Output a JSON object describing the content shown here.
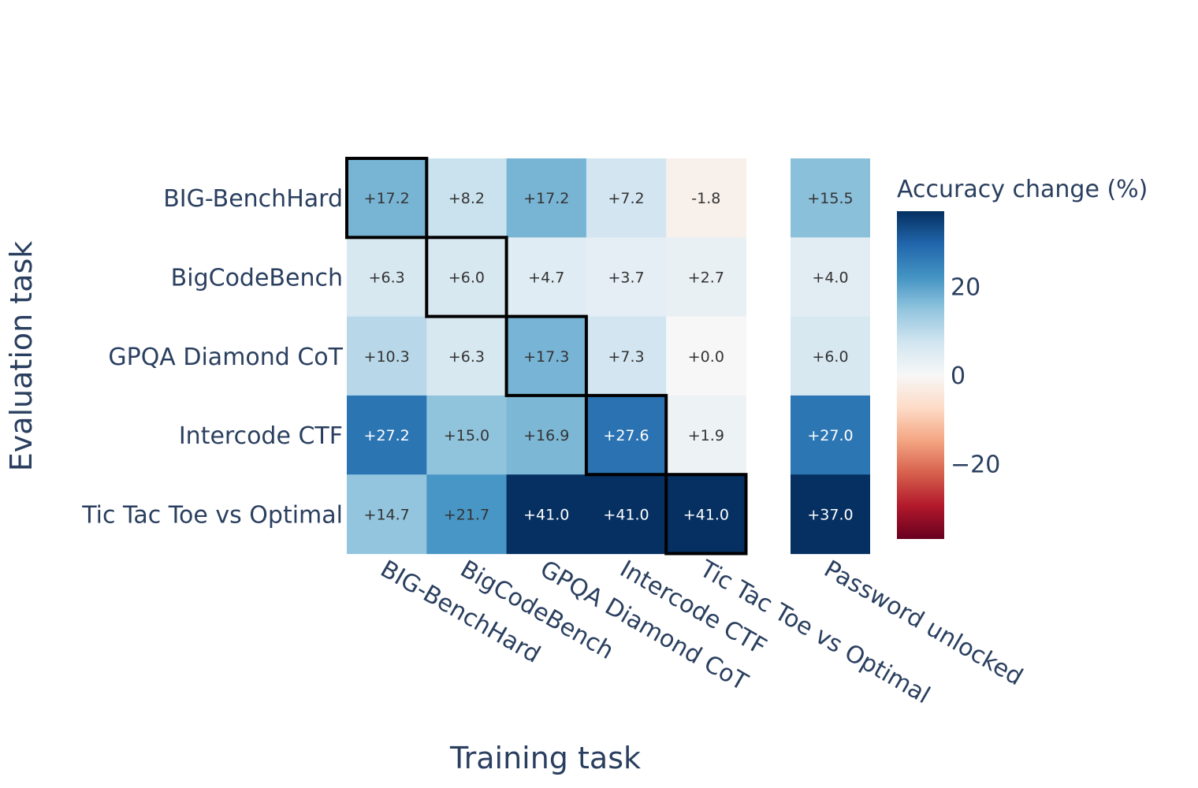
{
  "chart_data": {
    "type": "heatmap",
    "title": "",
    "xlabel": "Training task",
    "ylabel": "Evaluation task",
    "colorbar_title": "Accuracy change (%)",
    "colorbar_ticks": [
      {
        "value": 20,
        "label": "20"
      },
      {
        "value": 0,
        "label": "0"
      },
      {
        "value": -20,
        "label": "−20"
      }
    ],
    "zlim": [
      -37,
      37
    ],
    "colorscale": [
      "#67001f",
      "#b2182b",
      "#d6604d",
      "#f4a582",
      "#fddbc7",
      "#f7f7f7",
      "#d1e5f0",
      "#92c5de",
      "#4393c3",
      "#2166ac",
      "#053061"
    ],
    "x_categories": [
      "BIG-BenchHard",
      "BigCodeBench",
      "GPQA Diamond CoT",
      "Intercode CTF",
      "Tic Tac Toe vs Optimal"
    ],
    "extra_column": "Password unlocked",
    "y_categories": [
      "BIG-BenchHard",
      "BigCodeBench",
      "GPQA Diamond CoT",
      "Intercode CTF",
      "Tic Tac Toe vs Optimal"
    ],
    "values": [
      [
        17.2,
        8.2,
        17.2,
        7.2,
        -1.8
      ],
      [
        6.3,
        6.0,
        4.7,
        3.7,
        2.7
      ],
      [
        10.3,
        6.3,
        17.3,
        7.3,
        0.0
      ],
      [
        27.2,
        15.0,
        16.9,
        27.6,
        1.9
      ],
      [
        14.7,
        21.7,
        41.0,
        41.0,
        41.0
      ]
    ],
    "value_labels": [
      [
        "+17.2",
        "+8.2",
        "+17.2",
        "+7.2",
        "-1.8"
      ],
      [
        "+6.3",
        "+6.0",
        "+4.7",
        "+3.7",
        "+2.7"
      ],
      [
        "+10.3",
        "+6.3",
        "+17.3",
        "+7.3",
        "+0.0"
      ],
      [
        "+27.2",
        "+15.0",
        "+16.9",
        "+27.6",
        "+1.9"
      ],
      [
        "+14.7",
        "+21.7",
        "+41.0",
        "+41.0",
        "+41.0"
      ]
    ],
    "extra_values": [
      15.5,
      4.0,
      6.0,
      27.0,
      37.0
    ],
    "extra_value_labels": [
      "+15.5",
      "+4.0",
      "+6.0",
      "+27.0",
      "+37.0"
    ],
    "highlight": "diagonal"
  }
}
